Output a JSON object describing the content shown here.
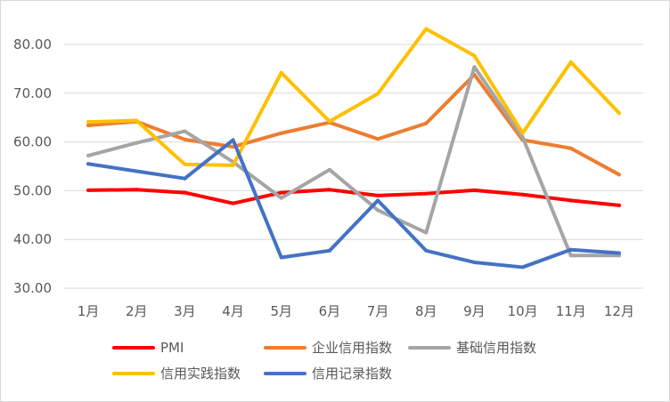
{
  "chart_data": {
    "type": "line",
    "title": "",
    "xlabel": "",
    "ylabel": "",
    "categories": [
      "1月",
      "2月",
      "3月",
      "4月",
      "5月",
      "6月",
      "7月",
      "8月",
      "9月",
      "10月",
      "11月",
      "12月"
    ],
    "ylim": [
      30,
      80
    ],
    "yticks": [
      "30.00",
      "40.00",
      "50.00",
      "60.00",
      "70.00",
      "80.00"
    ],
    "grid": "horizontal",
    "legend_position": "bottom",
    "series": [
      {
        "name": "PMI",
        "color": "#ff0000",
        "values": [
          50.1,
          50.2,
          49.6,
          47.4,
          49.6,
          50.2,
          49.0,
          49.4,
          50.1,
          49.2,
          48.0,
          47.0
        ]
      },
      {
        "name": "企业信用指数",
        "color": "#ed7d31",
        "values": [
          63.4,
          64.2,
          60.5,
          59.0,
          61.8,
          64.0,
          60.6,
          63.8,
          73.8,
          60.4,
          58.7,
          53.3
        ]
      },
      {
        "name": "基础信用指数",
        "color": "#a5a5a5",
        "values": [
          57.2,
          59.8,
          62.2,
          55.9,
          48.5,
          54.3,
          46.0,
          41.4,
          75.4,
          61.0,
          36.7,
          36.7
        ]
      },
      {
        "name": "信用实践指数",
        "color": "#ffc000",
        "values": [
          64.1,
          64.4,
          55.4,
          55.2,
          74.2,
          64.2,
          69.9,
          83.2,
          77.7,
          61.8,
          76.4,
          65.9
        ]
      },
      {
        "name": "信用记录指数",
        "color": "#4472c4",
        "values": [
          55.5,
          54.0,
          52.5,
          60.4,
          36.3,
          37.7,
          48.0,
          37.7,
          35.3,
          34.3,
          37.9,
          37.2
        ]
      }
    ]
  }
}
